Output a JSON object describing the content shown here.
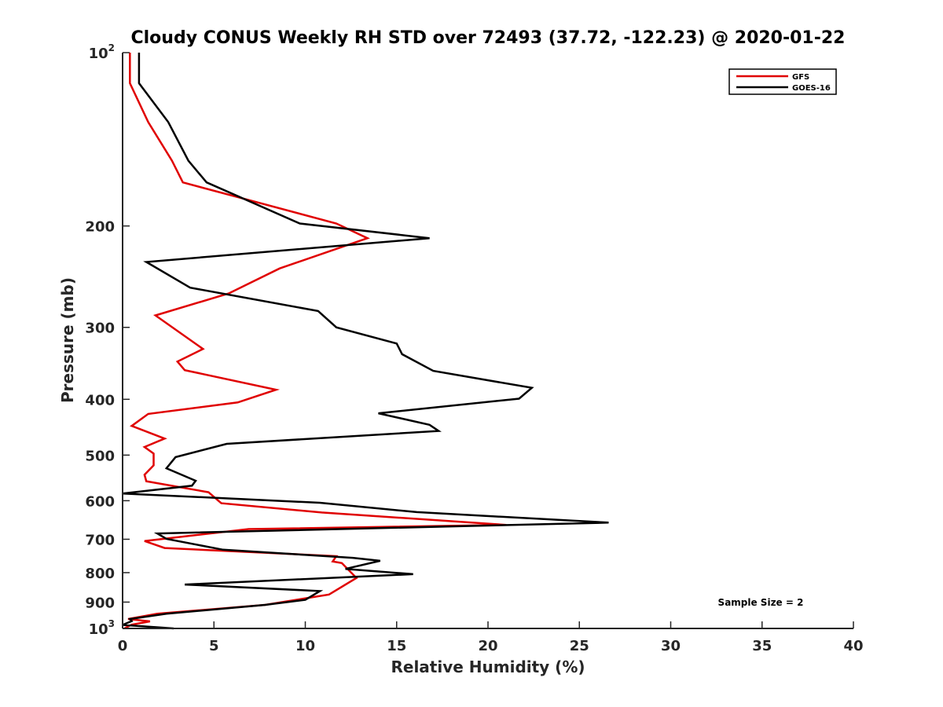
{
  "chart_data": {
    "type": "line",
    "title": "Cloudy CONUS Weekly RH STD over 72493 (37.72, -122.23) @ 2020-01-22",
    "xlabel": "Relative Humidity (%)",
    "ylabel": "Pressure (mb)",
    "xlim": [
      0,
      40
    ],
    "ylim": [
      100,
      1000
    ],
    "y_scale": "log",
    "y_direction": "reversed",
    "x_ticks": [
      0,
      5,
      10,
      15,
      20,
      25,
      30,
      35,
      40
    ],
    "y_ticks": [
      {
        "value": 100,
        "base": "10",
        "exp": "2"
      },
      {
        "value": 200,
        "label": "200"
      },
      {
        "value": 300,
        "label": "300"
      },
      {
        "value": 400,
        "label": "400"
      },
      {
        "value": 500,
        "label": "500"
      },
      {
        "value": 600,
        "label": "600"
      },
      {
        "value": 700,
        "label": "700"
      },
      {
        "value": 800,
        "label": "800"
      },
      {
        "value": 900,
        "label": "900"
      },
      {
        "value": 1000,
        "base": "10",
        "exp": "3"
      }
    ],
    "grid": false,
    "legend_position": "top-right",
    "annotation": "Sample Size = 2",
    "series": [
      {
        "name": "GFS",
        "color": "#e00000",
        "points": [
          [
            0.4,
            100
          ],
          [
            0.4,
            113
          ],
          [
            1.4,
            132
          ],
          [
            2.7,
            154
          ],
          [
            3.3,
            168
          ],
          [
            11.7,
            198
          ],
          [
            13.4,
            210
          ],
          [
            8.6,
            237
          ],
          [
            5.8,
            262
          ],
          [
            1.8,
            286
          ],
          [
            4.4,
            327
          ],
          [
            3.0,
            344
          ],
          [
            3.4,
            356
          ],
          [
            8.4,
            385
          ],
          [
            6.3,
            405
          ],
          [
            1.4,
            424
          ],
          [
            0.5,
            445
          ],
          [
            2.3,
            468
          ],
          [
            1.2,
            484
          ],
          [
            1.7,
            497
          ],
          [
            1.7,
            521
          ],
          [
            1.2,
            541
          ],
          [
            1.3,
            555
          ],
          [
            4.7,
            580
          ],
          [
            5.4,
            606
          ],
          [
            10.9,
            629
          ],
          [
            21.0,
            661
          ],
          [
            6.9,
            672
          ],
          [
            1.2,
            705
          ],
          [
            2.3,
            725
          ],
          [
            11.7,
            749
          ],
          [
            11.5,
            765
          ],
          [
            12.0,
            770
          ],
          [
            12.8,
            817
          ],
          [
            11.3,
            873
          ],
          [
            7.8,
            910
          ],
          [
            1.9,
            943
          ],
          [
            0.3,
            963
          ],
          [
            1.5,
            972
          ],
          [
            0.5,
            985
          ],
          [
            0.1,
            1000
          ]
        ]
      },
      {
        "name": "GOES-16",
        "color": "#000000",
        "points": [
          [
            0.9,
            100
          ],
          [
            0.9,
            113
          ],
          [
            2.5,
            132
          ],
          [
            3.6,
            154
          ],
          [
            4.6,
            168
          ],
          [
            9.7,
            198
          ],
          [
            16.8,
            210
          ],
          [
            1.3,
            231
          ],
          [
            3.7,
            256
          ],
          [
            10.7,
            281
          ],
          [
            11.7,
            300
          ],
          [
            15.0,
            320
          ],
          [
            15.3,
            334
          ],
          [
            17.0,
            357
          ],
          [
            22.4,
            382
          ],
          [
            21.7,
            399
          ],
          [
            14.0,
            423
          ],
          [
            16.8,
            443
          ],
          [
            17.3,
            454
          ],
          [
            5.7,
            478
          ],
          [
            2.9,
            504
          ],
          [
            2.4,
            527
          ],
          [
            4.0,
            554
          ],
          [
            3.8,
            565
          ],
          [
            0.0,
            583
          ],
          [
            10.8,
            605
          ],
          [
            16.1,
            628
          ],
          [
            26.6,
            655
          ],
          [
            1.9,
            684
          ],
          [
            2.4,
            699
          ],
          [
            5.5,
            730
          ],
          [
            12.6,
            754
          ],
          [
            14.1,
            763
          ],
          [
            12.2,
            788
          ],
          [
            15.9,
            805
          ],
          [
            3.4,
            839
          ],
          [
            10.8,
            861
          ],
          [
            10.0,
            892
          ],
          [
            7.8,
            910
          ],
          [
            2.4,
            943
          ],
          [
            0.4,
            963
          ],
          [
            0.5,
            971
          ],
          [
            0.0,
            986
          ],
          [
            2.8,
            1000
          ]
        ]
      }
    ]
  }
}
